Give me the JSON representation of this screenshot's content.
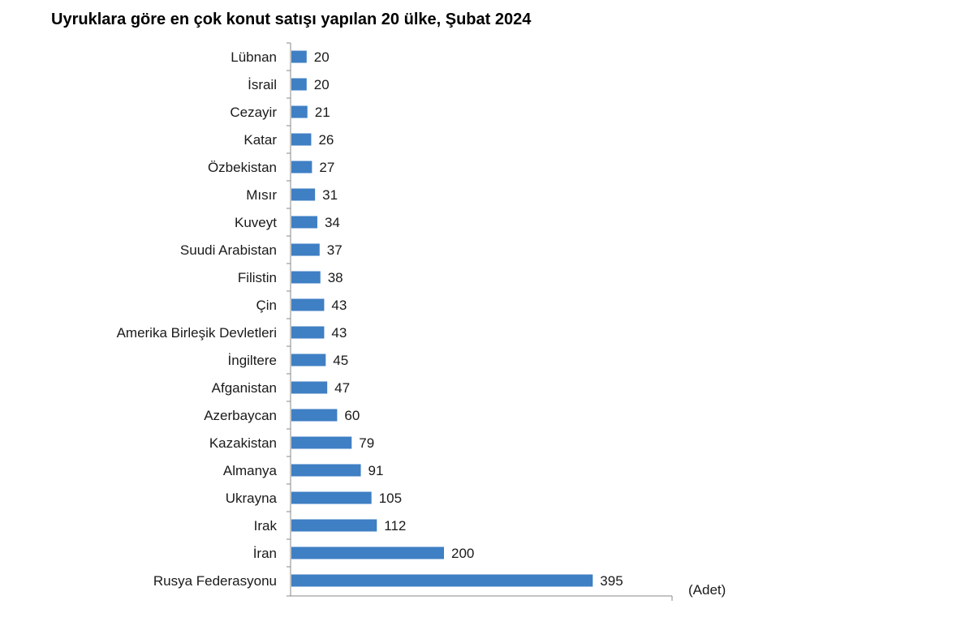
{
  "chart_data": {
    "type": "bar",
    "orientation": "horizontal",
    "title": "Uyruklara göre en çok konut satışı yapılan 20 ülke, Şubat 2024",
    "unit_label": "(Adet)",
    "categories": [
      "Lübnan",
      "İsrail",
      "Cezayir",
      "Katar",
      "Özbekistan",
      "Mısır",
      "Kuveyt",
      "Suudi Arabistan",
      "Filistin",
      "Çin",
      "Amerika Birleşik Devletleri",
      "İngiltere",
      "Afganistan",
      "Azerbaycan",
      "Kazakistan",
      "Almanya",
      "Ukrayna",
      "Irak",
      "İran",
      "Rusya Federasyonu"
    ],
    "values": [
      20,
      20,
      21,
      26,
      27,
      31,
      34,
      37,
      38,
      43,
      43,
      45,
      47,
      60,
      79,
      91,
      105,
      112,
      200,
      395
    ],
    "xlim": [
      0,
      500
    ],
    "grid": false,
    "bar_color": "#3f7fc4",
    "axis_color": "#888888"
  }
}
